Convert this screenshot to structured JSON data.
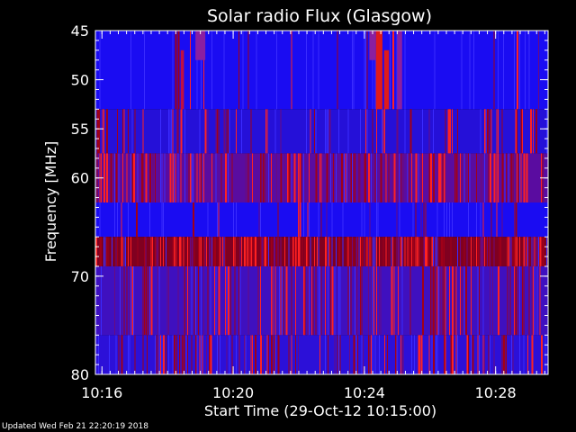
{
  "chart_data": {
    "type": "heatmap",
    "title": "Solar radio Flux (Glasgow)",
    "xlabel": "Start Time (29-Oct-12 10:15:00)",
    "ylabel": "Frequency [MHz]",
    "x_unit": "minutes after 10:15:00",
    "xlim": [
      0.8,
      14.6
    ],
    "ylim": [
      45,
      80
    ],
    "y_axis_inverted": true,
    "x_ticks": [
      {
        "value": 1,
        "label": "10:16"
      },
      {
        "value": 5,
        "label": "10:20"
      },
      {
        "value": 9,
        "label": "10:24"
      },
      {
        "value": 13,
        "label": "10:28"
      }
    ],
    "y_ticks": [
      {
        "value": 45,
        "label": "45"
      },
      {
        "value": 50,
        "label": "50"
      },
      {
        "value": 55,
        "label": "55"
      },
      {
        "value": 60,
        "label": "60"
      },
      {
        "value": 70,
        "label": "70"
      },
      {
        "value": 80,
        "label": "80"
      }
    ],
    "frequency_bands": [
      {
        "from": 45.0,
        "to": 53.0,
        "base_color": "#1a0cf2",
        "spike_density": 0.04
      },
      {
        "from": 53.0,
        "to": 57.5,
        "base_color": "#2510d8",
        "spike_density": 0.14
      },
      {
        "from": 57.5,
        "to": 62.5,
        "base_color": "#5a0ca0",
        "spike_density": 0.38
      },
      {
        "from": 62.5,
        "to": 66.0,
        "base_color": "#1a0cf2",
        "spike_density": 0.06
      },
      {
        "from": 66.0,
        "to": 69.0,
        "base_color": "#800020",
        "spike_density": 0.5
      },
      {
        "from": 69.0,
        "to": 76.0,
        "base_color": "#3f10bf",
        "spike_density": 0.3
      },
      {
        "from": 76.0,
        "to": 80.0,
        "base_color": "#2c10d8",
        "spike_density": 0.25
      }
    ],
    "bursts": [
      {
        "t_from": 3.85,
        "t_to": 4.15,
        "f_from": 45,
        "f_to": 48,
        "color": "#8a1fa0"
      },
      {
        "t_from": 9.35,
        "t_to": 9.55,
        "f_from": 45,
        "f_to": 53,
        "color": "#e01a1a"
      },
      {
        "t_from": 9.6,
        "t_to": 9.75,
        "f_from": 47,
        "f_to": 53,
        "color": "#e01a1a"
      },
      {
        "t_from": 10.0,
        "t_to": 10.15,
        "f_from": 45,
        "f_to": 53,
        "color": "#8a1fa0"
      },
      {
        "t_from": 9.15,
        "t_to": 9.35,
        "f_from": 45,
        "f_to": 48,
        "color": "#8a1fa0"
      },
      {
        "t_from": 3.4,
        "t_to": 3.5,
        "f_from": 47,
        "f_to": 53,
        "color": "#c01040"
      }
    ],
    "colors": {
      "low": "#0000ff",
      "mid": "#800000",
      "high": "#ff2a2a",
      "axes": "#ffffff",
      "background": "#000000"
    },
    "grid": false,
    "legend": "none"
  },
  "footer": {
    "text": "Updated Wed Feb 21 22:20:19 2018"
  }
}
